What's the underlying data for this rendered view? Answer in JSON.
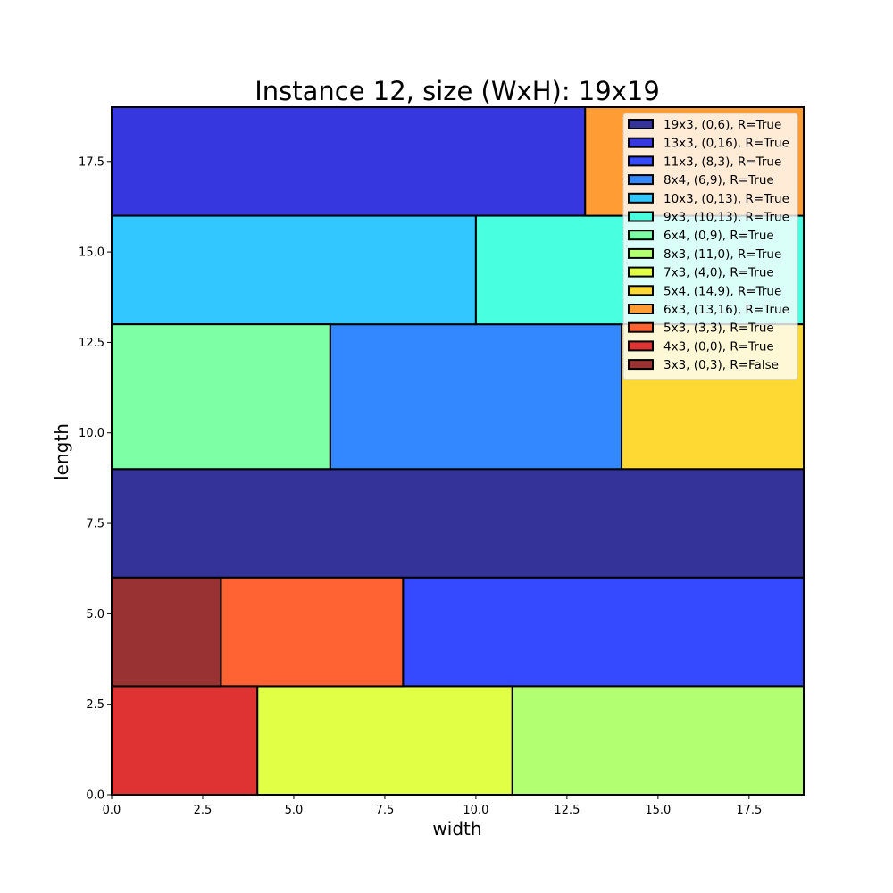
{
  "chart_data": {
    "type": "rect-packing",
    "title": "Instance 12, size (WxH): 19x19",
    "xlabel": "width",
    "ylabel": "length",
    "xlim": [
      0,
      19
    ],
    "ylim": [
      0,
      19
    ],
    "xticks": [
      "0.0",
      "2.5",
      "5.0",
      "7.5",
      "10.0",
      "12.5",
      "15.0",
      "17.5"
    ],
    "yticks": [
      "0.0",
      "2.5",
      "5.0",
      "7.5",
      "10.0",
      "12.5",
      "15.0",
      "17.5"
    ],
    "legend_position": "upper-right",
    "rectangles": [
      {
        "label": "19x3, (0,6), R=True",
        "x": 0,
        "y": 6,
        "w": 19,
        "h": 3,
        "color": "#333399"
      },
      {
        "label": "13x3, (0,16), R=True",
        "x": 0,
        "y": 16,
        "w": 13,
        "h": 3,
        "color": "#3737df"
      },
      {
        "label": "11x3, (8,3), R=True",
        "x": 8,
        "y": 3,
        "w": 11,
        "h": 3,
        "color": "#3549ff"
      },
      {
        "label": "8x4, (6,9), R=True",
        "x": 6,
        "y": 9,
        "w": 8,
        "h": 4,
        "color": "#3388ff"
      },
      {
        "label": "10x3, (0,13), R=True",
        "x": 0,
        "y": 13,
        "w": 10,
        "h": 3,
        "color": "#33c7ff"
      },
      {
        "label": "9x3, (10,13), R=True",
        "x": 10,
        "y": 13,
        "w": 9,
        "h": 3,
        "color": "#48ffdf"
      },
      {
        "label": "6x4, (0,9), R=True",
        "x": 0,
        "y": 9,
        "w": 6,
        "h": 4,
        "color": "#7dffa5"
      },
      {
        "label": "8x3, (11,0), R=True",
        "x": 11,
        "y": 0,
        "w": 8,
        "h": 3,
        "color": "#b2ff72"
      },
      {
        "label": "7x3, (4,0), R=True",
        "x": 4,
        "y": 0,
        "w": 7,
        "h": 3,
        "color": "#e1ff45"
      },
      {
        "label": "5x4, (14,9), R=True",
        "x": 14,
        "y": 9,
        "w": 5,
        "h": 4,
        "color": "#ffd933"
      },
      {
        "label": "6x3, (13,16), R=True",
        "x": 13,
        "y": 16,
        "w": 6,
        "h": 3,
        "color": "#ff9c33"
      },
      {
        "label": "5x3, (3,3), R=True",
        "x": 3,
        "y": 3,
        "w": 5,
        "h": 3,
        "color": "#ff6333"
      },
      {
        "label": "4x3, (0,0), R=True",
        "x": 0,
        "y": 0,
        "w": 4,
        "h": 3,
        "color": "#df3333"
      },
      {
        "label": "3x3, (0,3), R=False",
        "x": 0,
        "y": 3,
        "w": 3,
        "h": 3,
        "color": "#993333"
      }
    ]
  }
}
